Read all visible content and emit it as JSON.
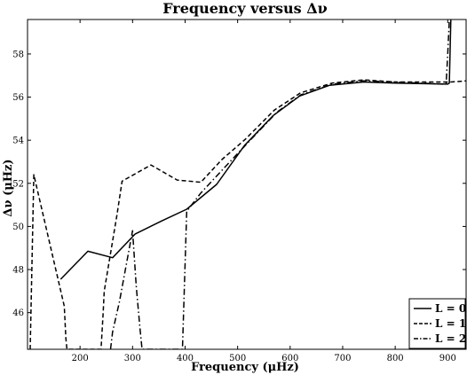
{
  "chart_data": {
    "type": "line",
    "title": "Frequency versus Δν",
    "xlabel": "Frequency (μHz)",
    "ylabel": "Δν (μHz)",
    "xlim": [
      100,
      935
    ],
    "ylim": [
      44.3,
      59.6
    ],
    "xticks": [
      200,
      300,
      400,
      500,
      600,
      700,
      800,
      900
    ],
    "yticks": [
      46,
      48,
      50,
      52,
      54,
      56,
      58
    ],
    "xtick_labels": [
      "200",
      "300",
      "400",
      "500",
      "600",
      "700",
      "800",
      "900"
    ],
    "ytick_labels": [
      "46",
      "48",
      "50",
      "52",
      "54",
      "56",
      "58"
    ],
    "grid": false,
    "legend_position": "bottom-right",
    "series": [
      {
        "name": "L = 0",
        "style": "solid",
        "x": [
          163,
          215,
          262,
          305,
          355,
          403,
          460,
          513,
          568,
          618,
          675,
          740,
          800,
          900,
          903,
          904.5,
          906
        ],
        "y": [
          47.55,
          48.85,
          48.55,
          49.65,
          50.25,
          50.8,
          51.95,
          53.75,
          55.15,
          56.05,
          56.55,
          56.7,
          56.65,
          56.6,
          56.65,
          58.2,
          59.6
        ]
      },
      {
        "name": "L = 1",
        "style": "dashed",
        "x": [
          105,
          112,
          170,
          173,
          175,
          240,
          244,
          246,
          270,
          280,
          335,
          385,
          430,
          470,
          515,
          570,
          620,
          680,
          740,
          800,
          860,
          890,
          905,
          935
        ],
        "y": [
          44.3,
          52.4,
          46.3,
          44.8,
          44.3,
          44.3,
          46.0,
          47.0,
          50.5,
          52.1,
          52.85,
          52.15,
          52.05,
          53.1,
          54.05,
          55.4,
          56.2,
          56.65,
          56.8,
          56.7,
          56.7,
          56.7,
          56.7,
          56.75
        ]
      },
      {
        "name": "L = 2",
        "style": "dashdot",
        "x": [
          258,
          262,
          275,
          300,
          307,
          314,
          318,
          395,
          403,
          430,
          470,
          520,
          575,
          620,
          680,
          740,
          800,
          890,
          897,
          900,
          903
        ],
        "y": [
          44.3,
          45.1,
          46.5,
          49.8,
          47.2,
          45.3,
          44.3,
          44.3,
          50.7,
          51.55,
          52.6,
          53.9,
          55.3,
          56.1,
          56.6,
          56.75,
          56.7,
          56.6,
          56.62,
          58.0,
          59.6
        ]
      }
    ]
  }
}
